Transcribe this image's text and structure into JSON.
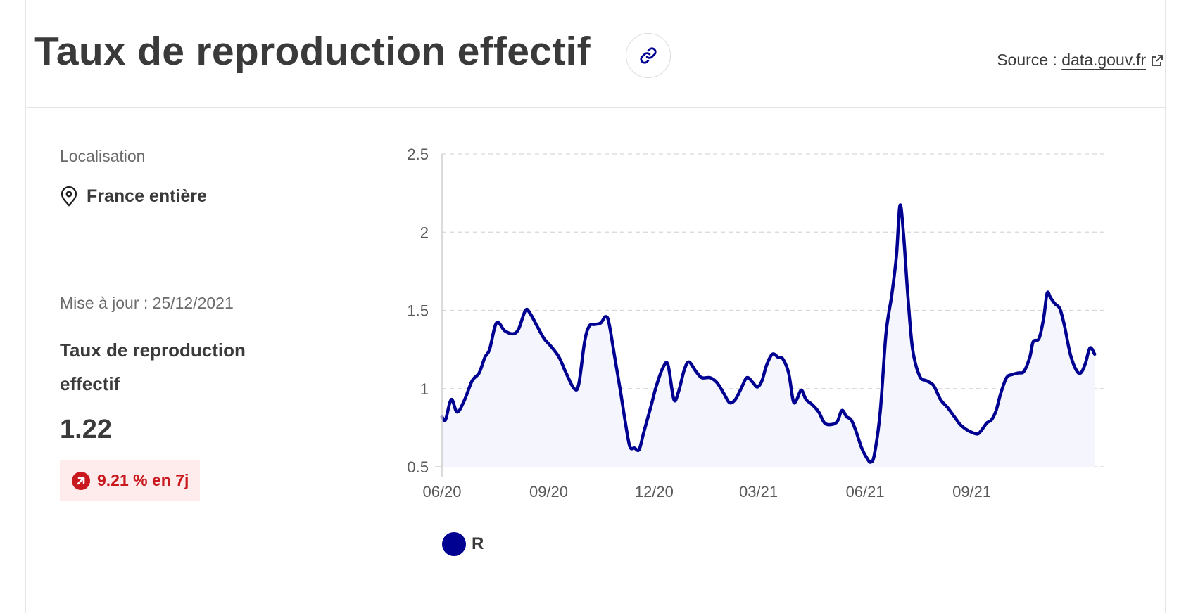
{
  "header": {
    "title": "Taux de reproduction effectif",
    "source_prefix": "Source : ",
    "source_link": "data.gouv.fr",
    "link_icon": "link-icon",
    "external_icon": "external-link-icon"
  },
  "sidebar": {
    "location_label": "Localisation",
    "location_icon": "map-pin-icon",
    "location_value": "France entière",
    "update_text": "Mise à jour : 25/12/2021",
    "indicator_name": "Taux de reproduction effectif",
    "value": "1.22",
    "trend_icon": "arrow-up-right-icon",
    "trend_text": "9.21 % en 7j"
  },
  "colors": {
    "line": "#000091",
    "fill": "#f5f5fe",
    "trend": "#c9191e",
    "trend_bg": "#fdeceb"
  },
  "chart_data": {
    "type": "area",
    "x_ticks": [
      "06/20",
      "09/20",
      "12/20",
      "03/21",
      "06/21",
      "09/21"
    ],
    "y_ticks": [
      "0.5",
      "1",
      "1.5",
      "2",
      "2.5"
    ],
    "ylim": [
      0.5,
      2.5
    ],
    "xlim": [
      "2020-06-01",
      "2021-12-25"
    ],
    "grid": "horizontal-dashed",
    "legend_position": "bottom-left",
    "series": [
      {
        "name": "R",
        "points": [
          [
            "2020-06-01",
            0.82
          ],
          [
            "2020-06-04",
            0.8
          ],
          [
            "2020-06-09",
            0.93
          ],
          [
            "2020-06-14",
            0.85
          ],
          [
            "2020-06-20",
            0.92
          ],
          [
            "2020-06-27",
            1.05
          ],
          [
            "2020-07-03",
            1.1
          ],
          [
            "2020-07-08",
            1.2
          ],
          [
            "2020-07-12",
            1.25
          ],
          [
            "2020-07-18",
            1.42
          ],
          [
            "2020-07-25",
            1.37
          ],
          [
            "2020-08-01",
            1.35
          ],
          [
            "2020-08-06",
            1.38
          ],
          [
            "2020-08-12",
            1.5
          ],
          [
            "2020-08-16",
            1.48
          ],
          [
            "2020-08-22",
            1.4
          ],
          [
            "2020-08-28",
            1.32
          ],
          [
            "2020-09-03",
            1.27
          ],
          [
            "2020-09-10",
            1.2
          ],
          [
            "2020-09-16",
            1.1
          ],
          [
            "2020-09-23",
            1.0
          ],
          [
            "2020-09-27",
            1.03
          ],
          [
            "2020-10-02",
            1.3
          ],
          [
            "2020-10-06",
            1.4
          ],
          [
            "2020-10-11",
            1.41
          ],
          [
            "2020-10-16",
            1.42
          ],
          [
            "2020-10-20",
            1.46
          ],
          [
            "2020-10-23",
            1.42
          ],
          [
            "2020-10-28",
            1.2
          ],
          [
            "2020-11-02",
            0.98
          ],
          [
            "2020-11-06",
            0.79
          ],
          [
            "2020-11-10",
            0.63
          ],
          [
            "2020-11-14",
            0.62
          ],
          [
            "2020-11-18",
            0.61
          ],
          [
            "2020-11-22",
            0.72
          ],
          [
            "2020-11-28",
            0.88
          ],
          [
            "2020-12-03",
            1.02
          ],
          [
            "2020-12-09",
            1.14
          ],
          [
            "2020-12-13",
            1.15
          ],
          [
            "2020-12-18",
            0.93
          ],
          [
            "2020-12-22",
            0.98
          ],
          [
            "2020-12-27",
            1.12
          ],
          [
            "2020-12-31",
            1.17
          ],
          [
            "2021-01-06",
            1.11
          ],
          [
            "2021-01-11",
            1.07
          ],
          [
            "2021-01-18",
            1.07
          ],
          [
            "2021-01-24",
            1.04
          ],
          [
            "2021-01-30",
            0.97
          ],
          [
            "2021-02-04",
            0.91
          ],
          [
            "2021-02-09",
            0.93
          ],
          [
            "2021-02-14",
            1.0
          ],
          [
            "2021-02-19",
            1.07
          ],
          [
            "2021-02-24",
            1.04
          ],
          [
            "2021-02-28",
            1.01
          ],
          [
            "2021-03-04",
            1.05
          ],
          [
            "2021-03-08",
            1.15
          ],
          [
            "2021-03-13",
            1.22
          ],
          [
            "2021-03-18",
            1.2
          ],
          [
            "2021-03-22",
            1.19
          ],
          [
            "2021-03-27",
            1.1
          ],
          [
            "2021-03-31",
            0.92
          ],
          [
            "2021-04-03",
            0.93
          ],
          [
            "2021-04-07",
            0.99
          ],
          [
            "2021-04-11",
            0.93
          ],
          [
            "2021-04-16",
            0.9
          ],
          [
            "2021-04-22",
            0.85
          ],
          [
            "2021-04-27",
            0.78
          ],
          [
            "2021-05-03",
            0.77
          ],
          [
            "2021-05-08",
            0.79
          ],
          [
            "2021-05-12",
            0.86
          ],
          [
            "2021-05-16",
            0.82
          ],
          [
            "2021-05-20",
            0.8
          ],
          [
            "2021-05-24",
            0.73
          ],
          [
            "2021-05-29",
            0.62
          ],
          [
            "2021-06-03",
            0.55
          ],
          [
            "2021-06-06",
            0.53
          ],
          [
            "2021-06-09",
            0.58
          ],
          [
            "2021-06-14",
            0.85
          ],
          [
            "2021-06-19",
            1.35
          ],
          [
            "2021-06-24",
            1.6
          ],
          [
            "2021-06-28",
            1.85
          ],
          [
            "2021-07-01",
            2.17
          ],
          [
            "2021-07-04",
            2.0
          ],
          [
            "2021-07-08",
            1.58
          ],
          [
            "2021-07-12",
            1.25
          ],
          [
            "2021-07-18",
            1.08
          ],
          [
            "2021-07-24",
            1.05
          ],
          [
            "2021-07-30",
            1.02
          ],
          [
            "2021-08-05",
            0.93
          ],
          [
            "2021-08-11",
            0.88
          ],
          [
            "2021-08-17",
            0.82
          ],
          [
            "2021-08-22",
            0.77
          ],
          [
            "2021-08-27",
            0.74
          ],
          [
            "2021-09-01",
            0.72
          ],
          [
            "2021-09-06",
            0.71
          ],
          [
            "2021-09-09",
            0.73
          ],
          [
            "2021-09-14",
            0.78
          ],
          [
            "2021-09-18",
            0.8
          ],
          [
            "2021-09-22",
            0.86
          ],
          [
            "2021-09-26",
            0.97
          ],
          [
            "2021-10-01",
            1.07
          ],
          [
            "2021-10-06",
            1.09
          ],
          [
            "2021-10-11",
            1.1
          ],
          [
            "2021-10-16",
            1.11
          ],
          [
            "2021-10-21",
            1.2
          ],
          [
            "2021-10-24",
            1.3
          ],
          [
            "2021-10-29",
            1.32
          ],
          [
            "2021-11-02",
            1.45
          ],
          [
            "2021-11-05",
            1.61
          ],
          [
            "2021-11-08",
            1.58
          ],
          [
            "2021-11-12",
            1.54
          ],
          [
            "2021-11-16",
            1.51
          ],
          [
            "2021-11-20",
            1.4
          ],
          [
            "2021-11-25",
            1.22
          ],
          [
            "2021-11-30",
            1.12
          ],
          [
            "2021-12-04",
            1.1
          ],
          [
            "2021-12-08",
            1.16
          ],
          [
            "2021-12-12",
            1.26
          ],
          [
            "2021-12-16",
            1.22
          ]
        ]
      }
    ]
  }
}
